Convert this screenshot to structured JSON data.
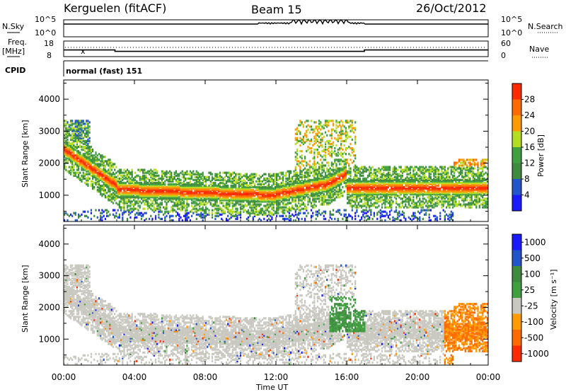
{
  "header": {
    "station": "Kerguelen (fitACF)",
    "beam": "Beam 15",
    "date": "26/Oct/2012"
  },
  "top_panels": {
    "nsky_label": "N.Sky",
    "nsearch_label": "N.Search",
    "noise_ticks": [
      "10^5",
      "10^0"
    ],
    "freq_label_1": "Freq.",
    "freq_label_2": "[MHz]",
    "freq_ticks": [
      "18",
      "8"
    ],
    "nave_label": "Nave",
    "nave_ticks": [
      "60",
      "0"
    ],
    "cpid_label": "CPID",
    "cpid_value": "normal (fast) 151"
  },
  "colors": {
    "power": [
      "#1a1aff",
      "#2255cc",
      "#3e8a3e",
      "#40a040",
      "#b4dc20",
      "#ff9a00",
      "#ff6a00",
      "#ff2a00"
    ],
    "velocity": [
      "#1a1aff",
      "#2255cc",
      "#3e8a3e",
      "#40a040",
      "#c8c8c0",
      "#ff9a00",
      "#ff6a00",
      "#ff2a00"
    ]
  },
  "chart_data": {
    "type": "heatmap",
    "x_ticks": [
      "00:00",
      "04:00",
      "08:00",
      "12:00",
      "16:00",
      "20:00",
      "00:00"
    ],
    "xlim_hours": [
      0,
      24
    ],
    "xlabel": "Time UT",
    "ylabel": "Slant Range [km]",
    "ylim_km": [
      180,
      4600
    ],
    "y_ticks": [
      "1000",
      "2000",
      "3000",
      "4000"
    ],
    "power_panel": {
      "colorbar_label": "Power [dB]",
      "colorbar_ticks": [
        "4",
        "8",
        "12",
        "16",
        "20",
        "24",
        "28"
      ]
    },
    "velocity_panel": {
      "colorbar_label": "Velocity [m s⁻¹]",
      "colorbar_ticks": [
        "1000",
        "500",
        "100",
        "25",
        "-25",
        "-100",
        "-500",
        "-1000"
      ]
    },
    "freq_mhz": [
      {
        "t": 0,
        "f": 12.2
      },
      {
        "t": 2.9,
        "f": 12.2
      },
      {
        "t": 2.9,
        "f": 11.2
      },
      {
        "t": 17,
        "f": 11.2
      },
      {
        "t": 17,
        "f": 12.2
      },
      {
        "t": 24,
        "f": 12.2
      }
    ]
  }
}
